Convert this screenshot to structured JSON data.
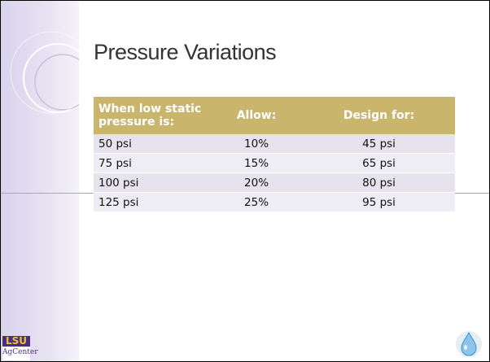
{
  "slide": {
    "title": "Pressure Variations",
    "table": {
      "header": [
        "When low static pressure is:",
        "Allow:",
        "Design for:"
      ],
      "rows": [
        [
          "50 psi",
          "10%",
          "45 psi"
        ],
        [
          "75 psi",
          "15%",
          "65 psi"
        ],
        [
          "100 psi",
          "20%",
          "80 psi"
        ],
        [
          "125 psi",
          "25%",
          "95 psi"
        ]
      ]
    },
    "logo": [
      "LSU",
      "AgCenter"
    ]
  }
}
